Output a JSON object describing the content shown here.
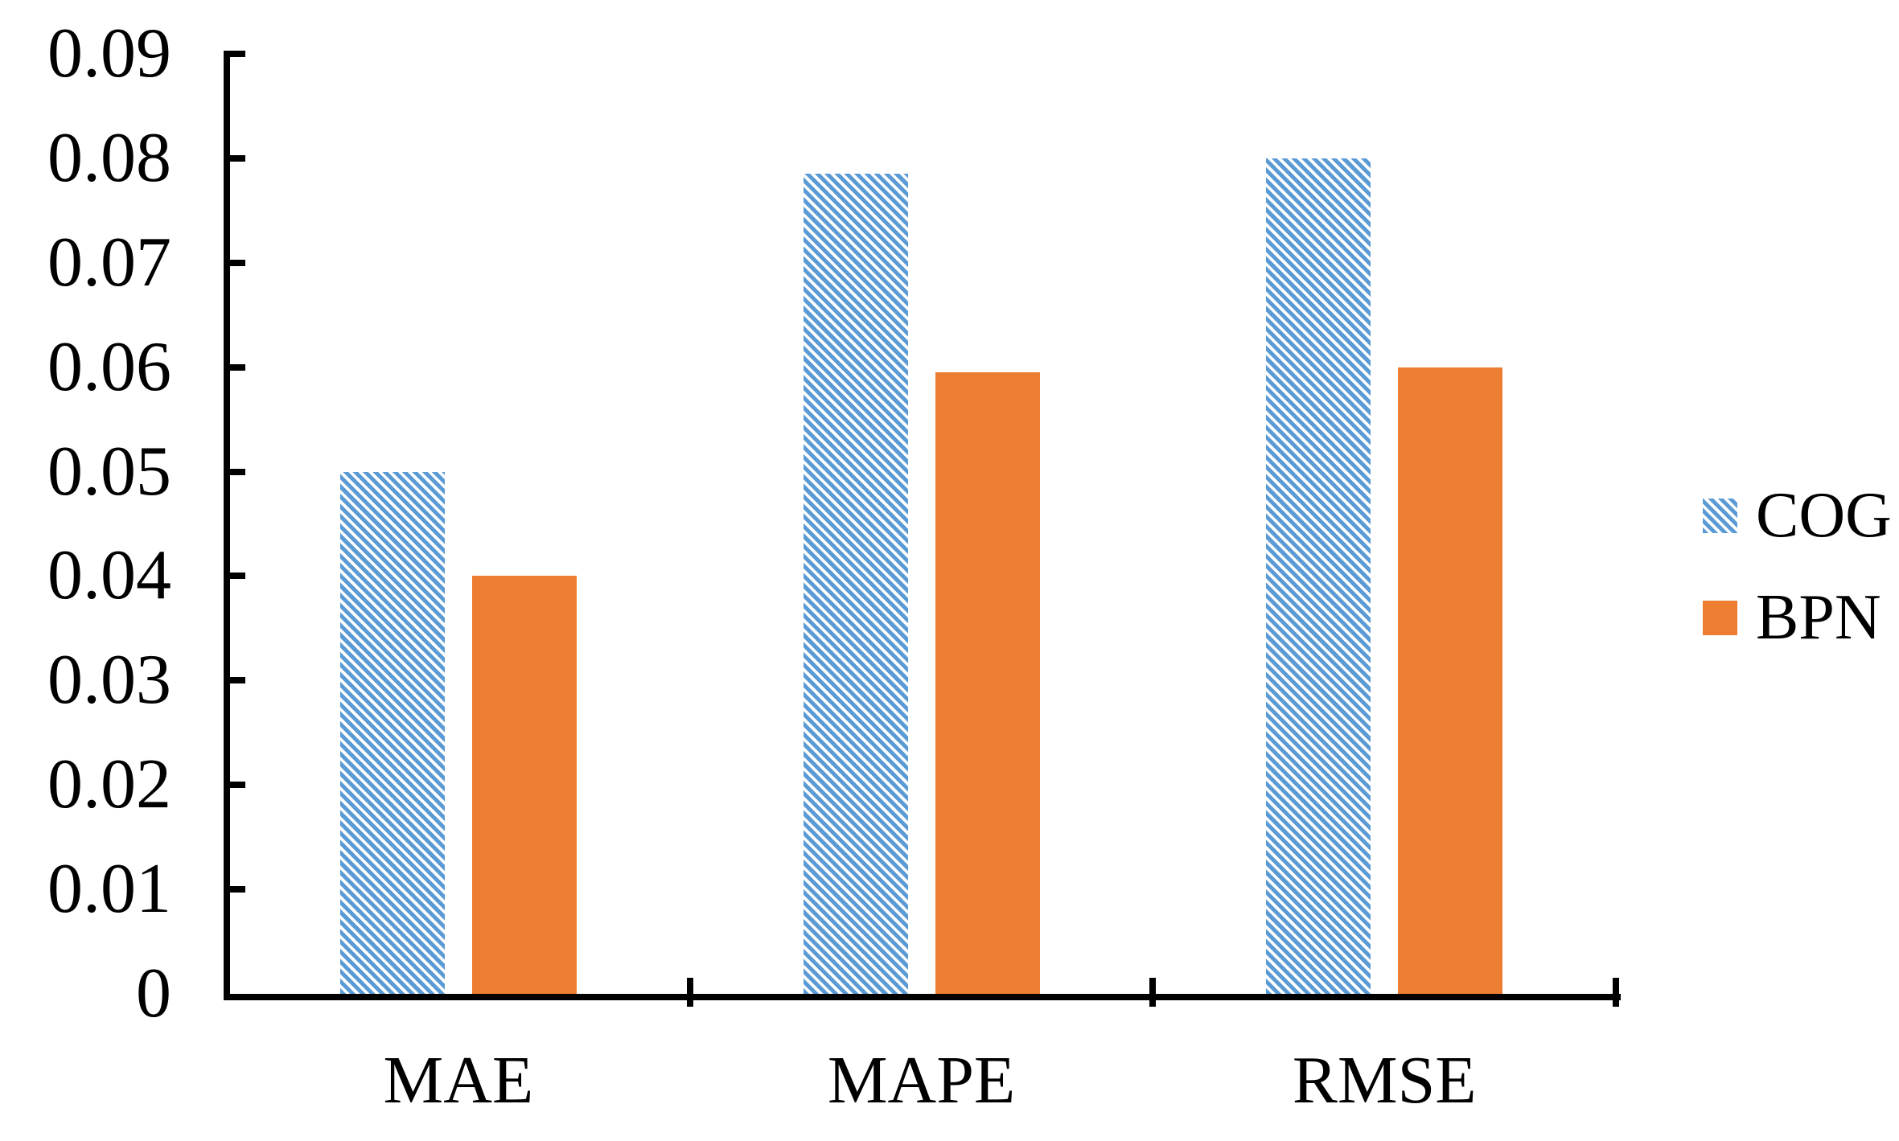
{
  "chart_data": {
    "type": "bar",
    "title": "",
    "xlabel": "",
    "ylabel": "",
    "categories": [
      "MAE",
      "MAPE",
      "RMSE"
    ],
    "series": [
      {
        "name": "COG",
        "values": [
          0.05,
          0.0785,
          0.08
        ],
        "color": "#5B9BD5",
        "fill_style": "diagonal-hatch"
      },
      {
        "name": "BPN",
        "values": [
          0.04,
          0.0595,
          0.06
        ],
        "color": "#ED7D31",
        "fill_style": "solid"
      }
    ],
    "ylim": [
      0,
      0.09
    ],
    "ytick_step": 0.01,
    "ytick_labels": [
      "0",
      "0.01",
      "0.02",
      "0.03",
      "0.04",
      "0.05",
      "0.06",
      "0.07",
      "0.08",
      "0.09"
    ],
    "grid": false,
    "legend_position": "right",
    "axis_color": "#000000",
    "background_color": "#FFFFFF"
  }
}
